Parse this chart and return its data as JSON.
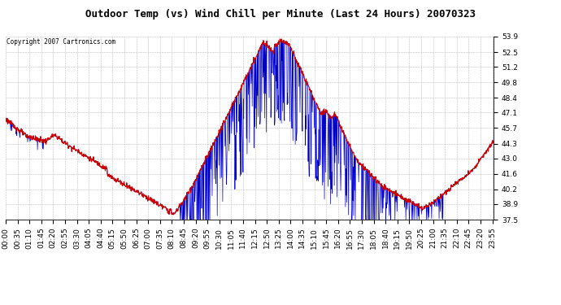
{
  "title": "Outdoor Temp (vs) Wind Chill per Minute (Last 24 Hours) 20070323",
  "copyright": "Copyright 2007 Cartronics.com",
  "ylabel_right_values": [
    53.9,
    52.5,
    51.2,
    49.8,
    48.4,
    47.1,
    45.7,
    44.3,
    43.0,
    41.6,
    40.2,
    38.9,
    37.5
  ],
  "ymin": 37.5,
  "ymax": 53.9,
  "bg_color": "#ffffff",
  "plot_bg_color": "#ffffff",
  "grid_color": "#aaaaaa",
  "temp_color": "#cc0000",
  "windchill_color": "#0000cc",
  "title_fontsize": 9,
  "tick_fontsize": 6.5,
  "copyright_fontsize": 5.5
}
